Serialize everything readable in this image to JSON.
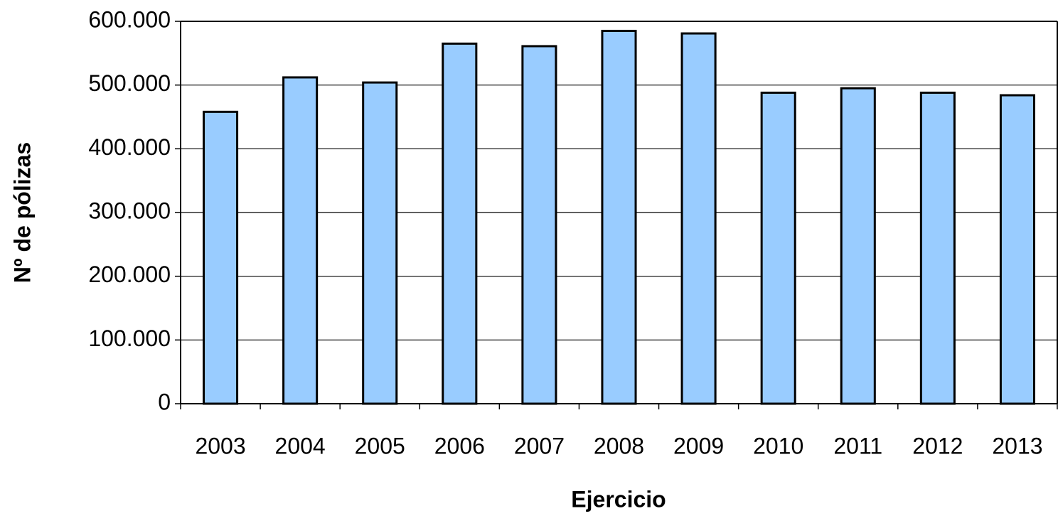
{
  "chart_data": {
    "type": "bar",
    "x_label": "Ejercicio",
    "y_label": "Nº de pólizas",
    "categories": [
      "2003",
      "2004",
      "2005",
      "2006",
      "2007",
      "2008",
      "2009",
      "2010",
      "2011",
      "2012",
      "2013"
    ],
    "values": [
      458000,
      512000,
      504000,
      565000,
      561000,
      585000,
      581000,
      488000,
      495000,
      488000,
      484000
    ],
    "color": "#99ccff",
    "ylim": [
      0,
      600000
    ],
    "yticks": [
      0,
      {
        "value": 100000,
        "label": "100.000"
      },
      {
        "value": 200000,
        "label": "200.000"
      },
      {
        "value": 300000,
        "label": "300.000"
      },
      {
        "value": 400000,
        "label": "400.000"
      },
      {
        "value": 500000,
        "label": "500.000"
      },
      {
        "value": 600000,
        "label": "600.000"
      }
    ],
    "grid": true
  }
}
